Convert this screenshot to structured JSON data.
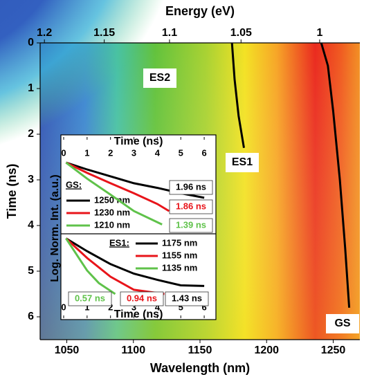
{
  "chart_data": [
    {
      "type": "heatmap",
      "xlabel": "Wavelength (nm)",
      "ylabel": "Time (ns)",
      "x2label": "Energy (eV)",
      "xlim": [
        1030,
        1270
      ],
      "xticks": [
        1050,
        1100,
        1150,
        1200,
        1250
      ],
      "ylim": [
        0,
        6.5
      ],
      "yticks": [
        0,
        1,
        2,
        3,
        4,
        5,
        6
      ],
      "x2ticks": [
        1.2,
        1.15,
        1.1,
        1.05,
        1
      ],
      "annotations": [
        "ES2",
        "ES1",
        "GS"
      ],
      "series": [
        {
          "name": "ES1",
          "color": "#000000",
          "x": [
            1174,
            1176,
            1179,
            1183
          ],
          "values": [
            0,
            0.8,
            1.6,
            2.3
          ]
        },
        {
          "name": "GS",
          "color": "#000000",
          "x": [
            1241,
            1246,
            1250,
            1255,
            1259,
            1262
          ],
          "values": [
            0,
            0.5,
            1.5,
            3,
            4.5,
            5.8
          ]
        }
      ]
    },
    {
      "type": "line",
      "xlabel": "Time (ns)",
      "ylabel": "Log. Norm. Int. (a.u.)",
      "legend_title": "GS:",
      "xlim": [
        0,
        6.5
      ],
      "xticks": [
        0,
        1,
        2,
        3,
        4,
        5,
        6
      ],
      "ylim": [
        0.01,
        1
      ],
      "log_scale": true,
      "series": [
        {
          "name": "1250 nm",
          "color": "#000000",
          "lifetime": "1.96 ns",
          "x": [
            0.1,
            1,
            2,
            3,
            4,
            5,
            6
          ],
          "values": [
            0.87,
            0.56,
            0.36,
            0.23,
            0.17,
            0.12,
            0.09
          ]
        },
        {
          "name": "1230 nm",
          "color": "#e8141a",
          "lifetime": "1.86 ns",
          "x": [
            0.1,
            1,
            2,
            3,
            4,
            4.5
          ],
          "values": [
            0.87,
            0.45,
            0.23,
            0.12,
            0.06,
            0.038
          ]
        },
        {
          "name": "1210 nm",
          "color": "#5fc24a",
          "lifetime": "1.39 ns",
          "x": [
            0.1,
            1,
            2,
            3,
            4.2
          ],
          "values": [
            0.87,
            0.31,
            0.11,
            0.038,
            0.016
          ]
        }
      ]
    },
    {
      "type": "line",
      "xlabel": "Time (ns)",
      "legend_title": "ES1:",
      "xlim": [
        0,
        6.5
      ],
      "xticks": [
        0,
        1,
        2,
        3,
        4,
        5,
        6
      ],
      "ylim": [
        0.01,
        1
      ],
      "log_scale": true,
      "series": [
        {
          "name": "1175 nm",
          "color": "#000000",
          "lifetime": "1.43 ns",
          "x": [
            0.1,
            1,
            2,
            3,
            4,
            5,
            6
          ],
          "values": [
            0.86,
            0.31,
            0.11,
            0.051,
            0.031,
            0.02,
            0.019
          ]
        },
        {
          "name": "1155 nm",
          "color": "#e8141a",
          "lifetime": "0.94 ns",
          "x": [
            0.1,
            1,
            2,
            3,
            4.3
          ],
          "values": [
            0.86,
            0.18,
            0.04,
            0.014,
            0.01
          ]
        },
        {
          "name": "1135 nm",
          "color": "#5fc24a",
          "lifetime": "0.57 ns",
          "x": [
            0.1,
            1,
            1.5,
            2.2
          ],
          "values": [
            0.86,
            0.066,
            0.024,
            0.01
          ]
        }
      ]
    }
  ]
}
